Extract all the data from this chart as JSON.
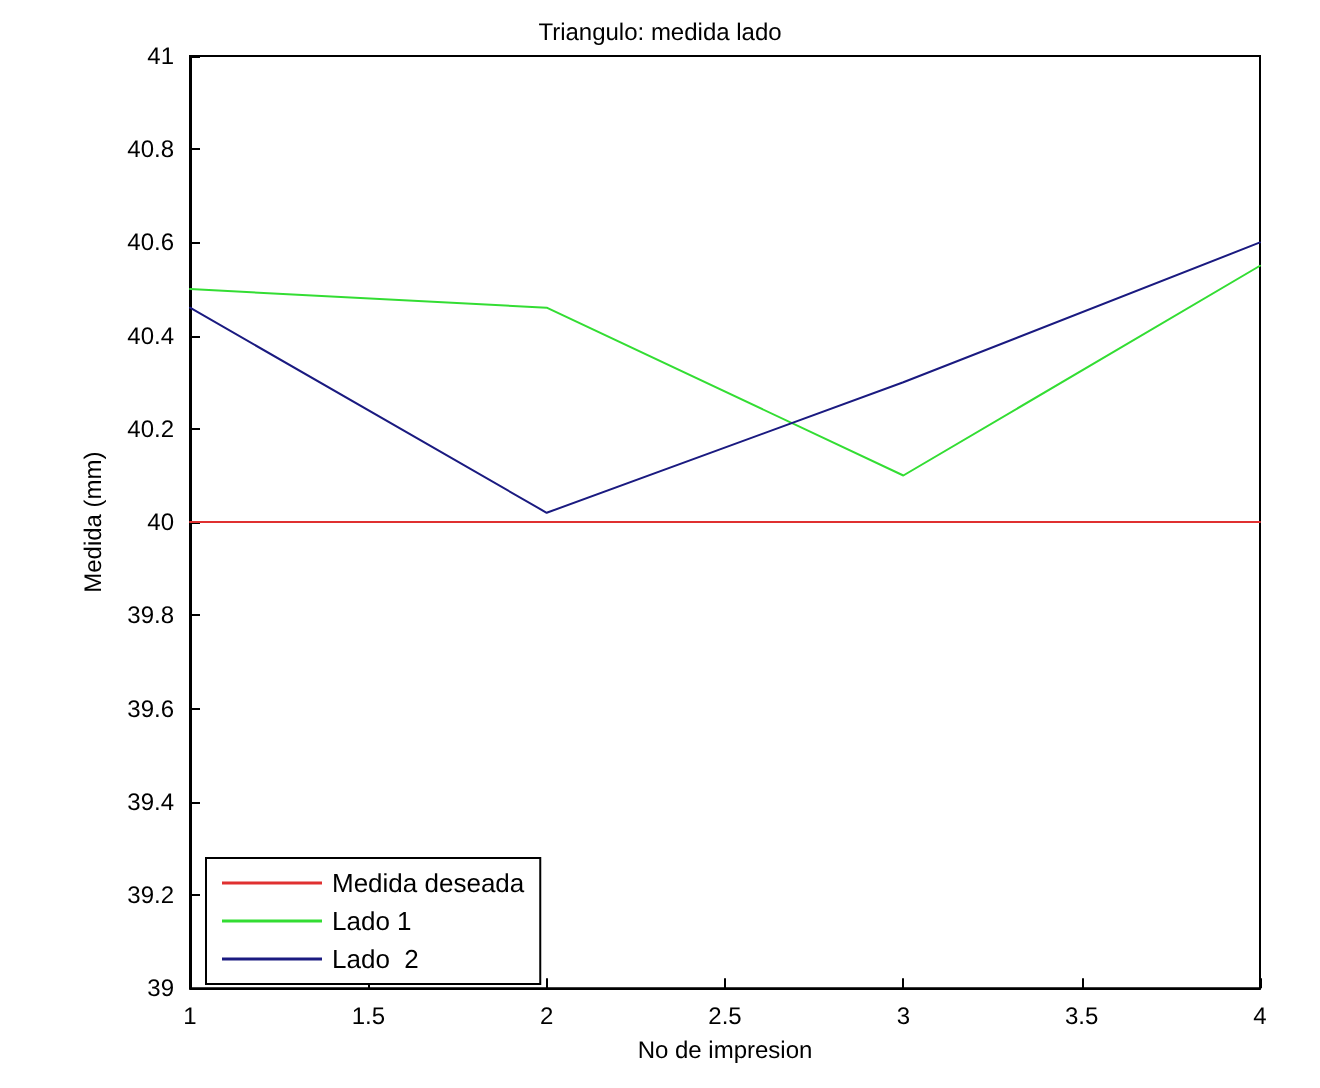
{
  "chart_data": {
    "type": "line",
    "title": "Triangulo: medida lado",
    "xlabel": "No de impresion",
    "ylabel": "Medida (mm)",
    "x": [
      1,
      2,
      3,
      4
    ],
    "series": [
      {
        "name": "Medida deseada",
        "color": "#e03030",
        "values": [
          40,
          40,
          40,
          40
        ]
      },
      {
        "name": "Lado 1",
        "color": "#33dd33",
        "values": [
          40.5,
          40.46,
          40.1,
          40.55
        ]
      },
      {
        "name": "Lado  2",
        "color": "#1a1a80",
        "values": [
          40.46,
          40.02,
          40.3,
          40.6
        ]
      }
    ],
    "xlim": [
      1,
      4
    ],
    "xticks": [
      1,
      1.5,
      2,
      2.5,
      3,
      3.5,
      4
    ],
    "ylim": [
      39,
      41
    ],
    "yticks": [
      39,
      39.2,
      39.4,
      39.6,
      39.8,
      40,
      40.2,
      40.4,
      40.6,
      40.8,
      41
    ],
    "grid": false,
    "legend": "bottom left",
    "marker": "none",
    "line_style": "solid"
  }
}
